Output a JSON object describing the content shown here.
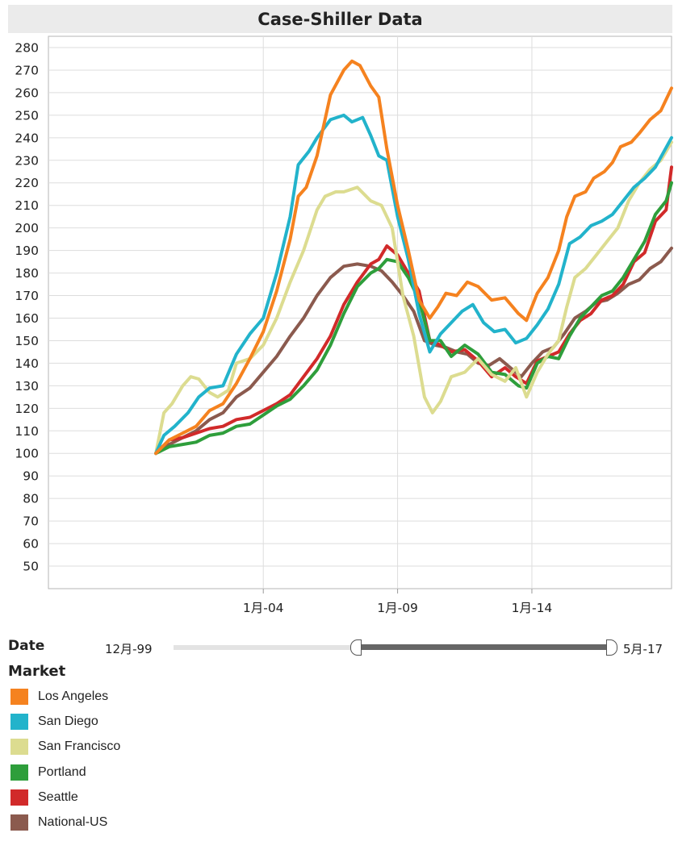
{
  "chart_data": {
    "type": "line",
    "title": "Case-Shiller Data",
    "xlabel": "",
    "ylabel": "",
    "ylim": [
      40,
      285
    ],
    "yticks": [
      50,
      60,
      70,
      80,
      90,
      100,
      110,
      120,
      130,
      140,
      150,
      160,
      170,
      180,
      190,
      200,
      210,
      220,
      230,
      240,
      250,
      260,
      270,
      280
    ],
    "xrange": [
      1996.0,
      2019.2
    ],
    "xticks": [
      {
        "value": 2004.0,
        "label": "1月-04"
      },
      {
        "value": 2009.0,
        "label": "1月-09"
      },
      {
        "value": 2014.0,
        "label": "1月-14"
      }
    ],
    "grid": true,
    "series": [
      {
        "name": "Los Angeles",
        "color": "#f5821f",
        "points": [
          [
            2000.0,
            100
          ],
          [
            2000.5,
            106
          ],
          [
            2001.0,
            109
          ],
          [
            2001.5,
            112
          ],
          [
            2002.0,
            119
          ],
          [
            2002.5,
            122
          ],
          [
            2003.0,
            131
          ],
          [
            2003.5,
            142
          ],
          [
            2004.0,
            154
          ],
          [
            2004.5,
            172
          ],
          [
            2005.0,
            195
          ],
          [
            2005.3,
            214
          ],
          [
            2005.6,
            218
          ],
          [
            2006.0,
            232
          ],
          [
            2006.5,
            259
          ],
          [
            2007.0,
            270
          ],
          [
            2007.3,
            274
          ],
          [
            2007.6,
            272
          ],
          [
            2008.0,
            263
          ],
          [
            2008.3,
            258
          ],
          [
            2008.6,
            235
          ],
          [
            2009.0,
            210
          ],
          [
            2009.4,
            190
          ],
          [
            2009.8,
            168
          ],
          [
            2010.2,
            160
          ],
          [
            2010.5,
            165
          ],
          [
            2010.8,
            171
          ],
          [
            2011.2,
            170
          ],
          [
            2011.6,
            176
          ],
          [
            2012.0,
            174
          ],
          [
            2012.5,
            168
          ],
          [
            2013.0,
            169
          ],
          [
            2013.5,
            162
          ],
          [
            2013.8,
            159
          ],
          [
            2014.2,
            171
          ],
          [
            2014.6,
            178
          ],
          [
            2015.0,
            190
          ],
          [
            2015.3,
            205
          ],
          [
            2015.6,
            214
          ],
          [
            2016.0,
            216
          ],
          [
            2016.3,
            222
          ],
          [
            2016.7,
            225
          ],
          [
            2017.0,
            229
          ],
          [
            2017.3,
            236
          ],
          [
            2017.7,
            238
          ],
          [
            2018.0,
            242
          ],
          [
            2018.4,
            248
          ],
          [
            2018.8,
            252
          ],
          [
            2019.2,
            262
          ]
        ]
      },
      {
        "name": "San Diego",
        "color": "#22b3cb",
        "points": [
          [
            2000.0,
            100
          ],
          [
            2000.3,
            108
          ],
          [
            2000.7,
            112
          ],
          [
            2001.2,
            118
          ],
          [
            2001.6,
            125
          ],
          [
            2002.0,
            129
          ],
          [
            2002.5,
            130
          ],
          [
            2003.0,
            144
          ],
          [
            2003.5,
            153
          ],
          [
            2004.0,
            160
          ],
          [
            2004.5,
            180
          ],
          [
            2005.0,
            205
          ],
          [
            2005.3,
            228
          ],
          [
            2005.7,
            234
          ],
          [
            2006.0,
            240
          ],
          [
            2006.5,
            248
          ],
          [
            2007.0,
            250
          ],
          [
            2007.3,
            247
          ],
          [
            2007.7,
            249
          ],
          [
            2008.0,
            241
          ],
          [
            2008.3,
            232
          ],
          [
            2008.6,
            230
          ],
          [
            2009.0,
            205
          ],
          [
            2009.4,
            186
          ],
          [
            2009.8,
            162
          ],
          [
            2010.2,
            145
          ],
          [
            2010.6,
            153
          ],
          [
            2011.0,
            158
          ],
          [
            2011.4,
            163
          ],
          [
            2011.8,
            166
          ],
          [
            2012.2,
            158
          ],
          [
            2012.6,
            154
          ],
          [
            2013.0,
            155
          ],
          [
            2013.4,
            149
          ],
          [
            2013.8,
            151
          ],
          [
            2014.2,
            157
          ],
          [
            2014.6,
            164
          ],
          [
            2015.0,
            175
          ],
          [
            2015.4,
            193
          ],
          [
            2015.8,
            196
          ],
          [
            2016.2,
            201
          ],
          [
            2016.6,
            203
          ],
          [
            2017.0,
            206
          ],
          [
            2017.4,
            212
          ],
          [
            2017.8,
            218
          ],
          [
            2018.2,
            222
          ],
          [
            2018.6,
            227
          ],
          [
            2019.2,
            240
          ]
        ]
      },
      {
        "name": "San Francisco",
        "color": "#dcdc90",
        "points": [
          [
            2000.0,
            100
          ],
          [
            2000.3,
            118
          ],
          [
            2000.6,
            122
          ],
          [
            2001.0,
            130
          ],
          [
            2001.3,
            134
          ],
          [
            2001.6,
            133
          ],
          [
            2002.0,
            127
          ],
          [
            2002.3,
            125
          ],
          [
            2002.7,
            128
          ],
          [
            2003.0,
            140
          ],
          [
            2003.5,
            142
          ],
          [
            2004.0,
            148
          ],
          [
            2004.5,
            160
          ],
          [
            2005.0,
            176
          ],
          [
            2005.5,
            190
          ],
          [
            2006.0,
            208
          ],
          [
            2006.3,
            214
          ],
          [
            2006.7,
            216
          ],
          [
            2007.0,
            216
          ],
          [
            2007.5,
            218
          ],
          [
            2008.0,
            212
          ],
          [
            2008.4,
            210
          ],
          [
            2008.8,
            200
          ],
          [
            2009.2,
            170
          ],
          [
            2009.6,
            152
          ],
          [
            2010.0,
            125
          ],
          [
            2010.3,
            118
          ],
          [
            2010.6,
            123
          ],
          [
            2011.0,
            134
          ],
          [
            2011.5,
            136
          ],
          [
            2012.0,
            142
          ],
          [
            2012.5,
            135
          ],
          [
            2013.0,
            132
          ],
          [
            2013.4,
            138
          ],
          [
            2013.8,
            125
          ],
          [
            2014.2,
            136
          ],
          [
            2014.6,
            144
          ],
          [
            2015.0,
            150
          ],
          [
            2015.3,
            165
          ],
          [
            2015.6,
            178
          ],
          [
            2016.0,
            182
          ],
          [
            2016.4,
            188
          ],
          [
            2016.8,
            194
          ],
          [
            2017.2,
            200
          ],
          [
            2017.6,
            212
          ],
          [
            2018.0,
            220
          ],
          [
            2018.4,
            226
          ],
          [
            2018.8,
            230
          ],
          [
            2019.2,
            238
          ]
        ]
      },
      {
        "name": "Portland",
        "color": "#2e9e3b",
        "points": [
          [
            2000.0,
            100
          ],
          [
            2000.5,
            103
          ],
          [
            2001.0,
            104
          ],
          [
            2001.5,
            105
          ],
          [
            2002.0,
            108
          ],
          [
            2002.5,
            109
          ],
          [
            2003.0,
            112
          ],
          [
            2003.5,
            113
          ],
          [
            2004.0,
            117
          ],
          [
            2004.5,
            121
          ],
          [
            2005.0,
            124
          ],
          [
            2005.5,
            130
          ],
          [
            2006.0,
            137
          ],
          [
            2006.5,
            148
          ],
          [
            2007.0,
            162
          ],
          [
            2007.5,
            174
          ],
          [
            2008.0,
            180
          ],
          [
            2008.3,
            182
          ],
          [
            2008.6,
            186
          ],
          [
            2009.0,
            185
          ],
          [
            2009.4,
            178
          ],
          [
            2009.8,
            168
          ],
          [
            2010.2,
            150
          ],
          [
            2010.6,
            150
          ],
          [
            2011.0,
            143
          ],
          [
            2011.5,
            148
          ],
          [
            2012.0,
            144
          ],
          [
            2012.5,
            136
          ],
          [
            2013.0,
            135
          ],
          [
            2013.5,
            130
          ],
          [
            2013.8,
            129
          ],
          [
            2014.2,
            140
          ],
          [
            2014.6,
            143
          ],
          [
            2015.0,
            142
          ],
          [
            2015.4,
            152
          ],
          [
            2015.8,
            160
          ],
          [
            2016.2,
            165
          ],
          [
            2016.6,
            170
          ],
          [
            2017.0,
            172
          ],
          [
            2017.4,
            178
          ],
          [
            2017.8,
            186
          ],
          [
            2018.2,
            194
          ],
          [
            2018.6,
            206
          ],
          [
            2019.0,
            212
          ],
          [
            2019.2,
            220
          ]
        ]
      },
      {
        "name": "Seattle",
        "color": "#d12a2a",
        "points": [
          [
            2000.0,
            100
          ],
          [
            2000.5,
            106
          ],
          [
            2001.0,
            107
          ],
          [
            2001.5,
            109
          ],
          [
            2002.0,
            111
          ],
          [
            2002.5,
            112
          ],
          [
            2003.0,
            115
          ],
          [
            2003.5,
            116
          ],
          [
            2004.0,
            119
          ],
          [
            2004.5,
            122
          ],
          [
            2005.0,
            126
          ],
          [
            2005.5,
            134
          ],
          [
            2006.0,
            142
          ],
          [
            2006.5,
            152
          ],
          [
            2007.0,
            166
          ],
          [
            2007.5,
            176
          ],
          [
            2008.0,
            184
          ],
          [
            2008.3,
            186
          ],
          [
            2008.6,
            192
          ],
          [
            2009.0,
            188
          ],
          [
            2009.4,
            180
          ],
          [
            2009.8,
            172
          ],
          [
            2010.2,
            150
          ],
          [
            2010.6,
            148
          ],
          [
            2011.0,
            145
          ],
          [
            2011.5,
            146
          ],
          [
            2012.0,
            141
          ],
          [
            2012.5,
            134
          ],
          [
            2013.0,
            138
          ],
          [
            2013.4,
            134
          ],
          [
            2013.8,
            131
          ],
          [
            2014.2,
            141
          ],
          [
            2014.6,
            143
          ],
          [
            2015.0,
            145
          ],
          [
            2015.4,
            153
          ],
          [
            2015.8,
            159
          ],
          [
            2016.2,
            162
          ],
          [
            2016.6,
            168
          ],
          [
            2017.0,
            170
          ],
          [
            2017.4,
            175
          ],
          [
            2017.8,
            185
          ],
          [
            2018.2,
            189
          ],
          [
            2018.6,
            203
          ],
          [
            2019.0,
            208
          ],
          [
            2019.2,
            227
          ]
        ]
      },
      {
        "name": "National-US",
        "color": "#8b5a4e",
        "points": [
          [
            2000.0,
            100
          ],
          [
            2000.5,
            104
          ],
          [
            2001.0,
            107
          ],
          [
            2001.5,
            110
          ],
          [
            2002.0,
            115
          ],
          [
            2002.5,
            118
          ],
          [
            2003.0,
            125
          ],
          [
            2003.5,
            129
          ],
          [
            2004.0,
            136
          ],
          [
            2004.5,
            143
          ],
          [
            2005.0,
            152
          ],
          [
            2005.5,
            160
          ],
          [
            2006.0,
            170
          ],
          [
            2006.5,
            178
          ],
          [
            2007.0,
            183
          ],
          [
            2007.5,
            184
          ],
          [
            2008.0,
            183
          ],
          [
            2008.4,
            181
          ],
          [
            2008.8,
            176
          ],
          [
            2009.2,
            170
          ],
          [
            2009.6,
            163
          ],
          [
            2010.0,
            150
          ],
          [
            2010.4,
            148
          ],
          [
            2010.8,
            147
          ],
          [
            2011.2,
            145
          ],
          [
            2011.6,
            144
          ],
          [
            2012.0,
            140
          ],
          [
            2012.4,
            139
          ],
          [
            2012.8,
            142
          ],
          [
            2013.2,
            138
          ],
          [
            2013.6,
            134
          ],
          [
            2014.0,
            140
          ],
          [
            2014.4,
            145
          ],
          [
            2014.8,
            147
          ],
          [
            2015.2,
            153
          ],
          [
            2015.6,
            160
          ],
          [
            2016.0,
            163
          ],
          [
            2016.4,
            167
          ],
          [
            2016.8,
            168
          ],
          [
            2017.2,
            171
          ],
          [
            2017.6,
            175
          ],
          [
            2018.0,
            177
          ],
          [
            2018.4,
            182
          ],
          [
            2018.8,
            185
          ],
          [
            2019.2,
            191
          ]
        ]
      }
    ]
  },
  "date_filter": {
    "label": "Date",
    "start": "12月-99",
    "end": "5月-17"
  },
  "legend": {
    "title": "Market",
    "items": [
      {
        "label": "Los Angeles",
        "color": "#f5821f"
      },
      {
        "label": "San Diego",
        "color": "#22b3cb"
      },
      {
        "label": "San Francisco",
        "color": "#dcdc90"
      },
      {
        "label": "Portland",
        "color": "#2e9e3b"
      },
      {
        "label": "Seattle",
        "color": "#d12a2a"
      },
      {
        "label": "National-US",
        "color": "#8b5a4e"
      }
    ]
  }
}
